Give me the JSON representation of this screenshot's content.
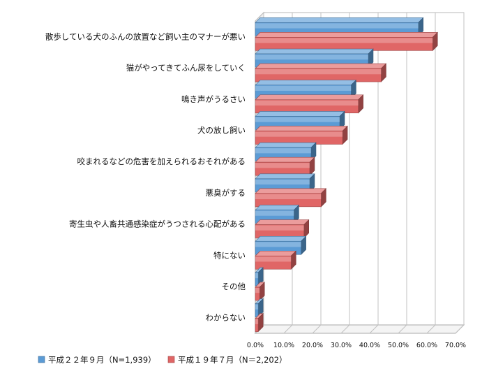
{
  "chart_data": {
    "type": "bar",
    "orientation": "horizontal",
    "style": "3d-clustered",
    "categories": [
      "散歩している犬のふんの放置など飼い主のマナーが悪い",
      "猫がやってきてふん尿をしていく",
      "鳴き声がうるさい",
      "犬の放し飼い",
      "咬まれるなどの危害を加えられるおそれがある",
      "悪臭がする",
      "寄生虫や人畜共通感染症がうつされる心配がある",
      "特にない",
      "その他",
      "わからない"
    ],
    "series": [
      {
        "name": "平成２２年９月（N=1,939）",
        "color": "#5b9bd5",
        "values": [
          57.0,
          39.5,
          33.5,
          29.5,
          19.5,
          19.0,
          13.5,
          16.0,
          1.0,
          1.0
        ]
      },
      {
        "name": "平成１９年７月（N＝2,202）",
        "color": "#e06666",
        "values": [
          62.0,
          44.0,
          36.0,
          30.5,
          19.0,
          23.0,
          17.0,
          12.5,
          1.5,
          1.0
        ]
      }
    ],
    "xlim": [
      0,
      70
    ],
    "xticks": [
      "0.0%",
      "10.0%",
      "20.0%",
      "30.0%",
      "40.0%",
      "50.0%",
      "60.0%",
      "70.0%"
    ],
    "grid": true,
    "legend_position": "bottom-left"
  }
}
